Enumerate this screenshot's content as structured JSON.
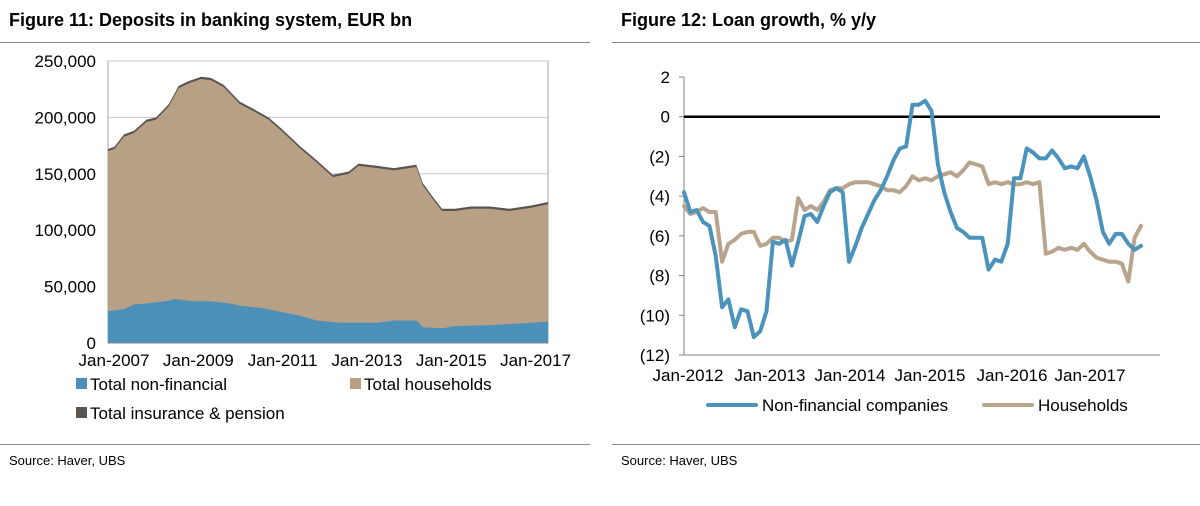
{
  "chart_data": [
    {
      "type": "area",
      "title": "Figure 11: Deposits in banking system, EUR bn",
      "source": "Source:  Haver, UBS",
      "stacked": true,
      "x_tick_labels": [
        "Jan-2007",
        "Jan-2009",
        "Jan-2011",
        "Jan-2013",
        "Jan-2015",
        "Jan-2017"
      ],
      "y_tick_labels": [
        "0",
        "50,000",
        "100,000",
        "150,000",
        "200,000",
        "250,000"
      ],
      "y_ticks": [
        0,
        50000,
        100000,
        150000,
        200000,
        250000
      ],
      "ylim": [
        0,
        250000
      ],
      "x_range": [
        "2007-01",
        "2018-06"
      ],
      "grid": true,
      "legend_position": "bottom",
      "series": [
        {
          "name": "Total non-financial",
          "color": "#4a90b8",
          "points": [
            [
              "2007-01",
              28000
            ],
            [
              "2007-06",
              30000
            ],
            [
              "2007-09",
              34000
            ],
            [
              "2008-01",
              35000
            ],
            [
              "2008-07",
              37000
            ],
            [
              "2008-10",
              39000
            ],
            [
              "2009-03",
              37000
            ],
            [
              "2009-09",
              37000
            ],
            [
              "2010-03",
              35000
            ],
            [
              "2010-06",
              33000
            ],
            [
              "2011-01",
              31000
            ],
            [
              "2011-06",
              28000
            ],
            [
              "2012-01",
              24000
            ],
            [
              "2012-06",
              20000
            ],
            [
              "2013-01",
              18000
            ],
            [
              "2014-01",
              18000
            ],
            [
              "2014-06",
              20000
            ],
            [
              "2015-01",
              20000
            ],
            [
              "2015-03",
              14000
            ],
            [
              "2015-09",
              13000
            ],
            [
              "2016-01",
              15000
            ],
            [
              "2017-01",
              16000
            ],
            [
              "2018-01",
              18000
            ],
            [
              "2018-06",
              19000
            ]
          ]
        },
        {
          "name": "Total households",
          "color": "#b7a085",
          "points": [
            [
              "2007-01",
              170000
            ],
            [
              "2007-03",
              172000
            ],
            [
              "2007-06",
              183000
            ],
            [
              "2007-09",
              186000
            ],
            [
              "2008-01",
              196000
            ],
            [
              "2008-04",
              198000
            ],
            [
              "2008-08",
              210000
            ],
            [
              "2008-11",
              226000
            ],
            [
              "2009-02",
              230000
            ],
            [
              "2009-06",
              234000
            ],
            [
              "2009-09",
              233000
            ],
            [
              "2010-01",
              227000
            ],
            [
              "2010-06",
              212000
            ],
            [
              "2010-10",
              206000
            ],
            [
              "2011-03",
              198000
            ],
            [
              "2011-07",
              188000
            ],
            [
              "2012-01",
              172000
            ],
            [
              "2012-06",
              160000
            ],
            [
              "2012-11",
              147000
            ],
            [
              "2013-04",
              150000
            ],
            [
              "2013-07",
              157000
            ],
            [
              "2014-01",
              155000
            ],
            [
              "2014-06",
              153000
            ],
            [
              "2015-01",
              156000
            ],
            [
              "2015-03",
              140000
            ],
            [
              "2015-06",
              128000
            ],
            [
              "2015-09",
              117000
            ],
            [
              "2016-01",
              117000
            ],
            [
              "2016-06",
              119000
            ],
            [
              "2016-12",
              119000
            ],
            [
              "2017-06",
              117000
            ],
            [
              "2018-01",
              120000
            ],
            [
              "2018-06",
              123000
            ]
          ]
        },
        {
          "name": "Total insurance & pension",
          "color": "#5a5550",
          "points": [
            [
              "2007-01",
              172000
            ],
            [
              "2007-03",
              174000
            ],
            [
              "2007-06",
              185000
            ],
            [
              "2007-09",
              188000
            ],
            [
              "2008-01",
              198000
            ],
            [
              "2008-04",
              200000
            ],
            [
              "2008-08",
              212000
            ],
            [
              "2008-11",
              228000
            ],
            [
              "2009-02",
              232000
            ],
            [
              "2009-06",
              236000
            ],
            [
              "2009-09",
              235000
            ],
            [
              "2010-01",
              229000
            ],
            [
              "2010-06",
              214000
            ],
            [
              "2010-10",
              208000
            ],
            [
              "2011-03",
              200000
            ],
            [
              "2011-07",
              190000
            ],
            [
              "2012-01",
              174000
            ],
            [
              "2012-06",
              162000
            ],
            [
              "2012-11",
              149000
            ],
            [
              "2013-04",
              152000
            ],
            [
              "2013-07",
              159000
            ],
            [
              "2014-01",
              157000
            ],
            [
              "2014-06",
              155000
            ],
            [
              "2015-01",
              158000
            ],
            [
              "2015-03",
              142000
            ],
            [
              "2015-06",
              130000
            ],
            [
              "2015-09",
              119000
            ],
            [
              "2016-01",
              119000
            ],
            [
              "2016-06",
              121000
            ],
            [
              "2016-12",
              121000
            ],
            [
              "2017-06",
              119000
            ],
            [
              "2018-01",
              122000
            ],
            [
              "2018-06",
              125000
            ]
          ]
        }
      ]
    },
    {
      "type": "line",
      "title": "Figure 12: Loan growth, % y/y",
      "source": "Source:  Haver, UBS",
      "x_tick_labels": [
        "Jan-2012",
        "Jan-2013",
        "Jan-2014",
        "Jan-2015",
        "Jan-2016",
        "Jan-2017"
      ],
      "y_tick_labels": [
        "2",
        "0",
        "(2)",
        "(4)",
        "(6)",
        "(8)",
        "(10)",
        "(12)"
      ],
      "y_ticks": [
        2,
        0,
        -2,
        -4,
        -6,
        -8,
        -10,
        -12
      ],
      "ylim": [
        -12,
        2
      ],
      "x_range": [
        "2012-01",
        "2018-04"
      ],
      "zero_line": true,
      "grid": false,
      "legend_position": "bottom",
      "series": [
        {
          "name": "Non-financial companies",
          "color": "#4b93bb",
          "points": [
            [
              "2012-01",
              -3.8
            ],
            [
              "2012-02",
              -4.8
            ],
            [
              "2012-03",
              -4.7
            ],
            [
              "2012-04",
              -5.3
            ],
            [
              "2012-05",
              -5.5
            ],
            [
              "2012-06",
              -7.0
            ],
            [
              "2012-07",
              -9.6
            ],
            [
              "2012-08",
              -9.2
            ],
            [
              "2012-09",
              -10.6
            ],
            [
              "2012-10",
              -9.7
            ],
            [
              "2012-11",
              -9.8
            ],
            [
              "2012-12",
              -11.1
            ],
            [
              "2013-01",
              -10.8
            ],
            [
              "2013-02",
              -9.8
            ],
            [
              "2013-03",
              -6.3
            ],
            [
              "2013-04",
              -6.4
            ],
            [
              "2013-05",
              -6.2
            ],
            [
              "2013-06",
              -7.5
            ],
            [
              "2013-07",
              -6.3
            ],
            [
              "2013-08",
              -5.0
            ],
            [
              "2013-09",
              -4.9
            ],
            [
              "2013-10",
              -5.3
            ],
            [
              "2013-11",
              -4.5
            ],
            [
              "2013-12",
              -3.8
            ],
            [
              "2014-01",
              -3.6
            ],
            [
              "2014-02",
              -3.8
            ],
            [
              "2014-03",
              -7.3
            ],
            [
              "2014-04",
              -6.5
            ],
            [
              "2014-05",
              -5.6
            ],
            [
              "2014-06",
              -4.9
            ],
            [
              "2014-07",
              -4.2
            ],
            [
              "2014-08",
              -3.7
            ],
            [
              "2014-09",
              -3.0
            ],
            [
              "2014-10",
              -2.2
            ],
            [
              "2014-11",
              -1.6
            ],
            [
              "2014-12",
              -1.5
            ],
            [
              "2015-01",
              0.6
            ],
            [
              "2015-02",
              0.6
            ],
            [
              "2015-03",
              0.8
            ],
            [
              "2015-04",
              0.3
            ],
            [
              "2015-05",
              -2.4
            ],
            [
              "2015-06",
              -3.8
            ],
            [
              "2015-07",
              -4.8
            ],
            [
              "2015-08",
              -5.6
            ],
            [
              "2015-09",
              -5.8
            ],
            [
              "2015-10",
              -6.1
            ],
            [
              "2015-11",
              -6.1
            ],
            [
              "2015-12",
              -6.1
            ],
            [
              "2016-01",
              -7.7
            ],
            [
              "2016-02",
              -7.2
            ],
            [
              "2016-03",
              -7.3
            ],
            [
              "2016-04",
              -6.4
            ],
            [
              "2016-05",
              -3.1
            ],
            [
              "2016-06",
              -3.1
            ],
            [
              "2016-07",
              -1.6
            ],
            [
              "2016-08",
              -1.8
            ],
            [
              "2016-09",
              -2.1
            ],
            [
              "2016-10",
              -2.1
            ],
            [
              "2016-11",
              -1.7
            ],
            [
              "2016-12",
              -2.1
            ],
            [
              "2017-01",
              -2.6
            ],
            [
              "2017-02",
              -2.5
            ],
            [
              "2017-03",
              -2.6
            ],
            [
              "2017-04",
              -2.0
            ],
            [
              "2017-05",
              -3.0
            ],
            [
              "2017-06",
              -4.2
            ],
            [
              "2017-07",
              -5.8
            ],
            [
              "2017-08",
              -6.4
            ],
            [
              "2017-09",
              -5.9
            ],
            [
              "2017-10",
              -5.9
            ],
            [
              "2017-11",
              -6.4
            ],
            [
              "2017-12",
              -6.7
            ],
            [
              "2018-01",
              -6.5
            ]
          ]
        },
        {
          "name": "Households",
          "color": "#b8a48c",
          "points": [
            [
              "2012-01",
              -4.5
            ],
            [
              "2012-02",
              -4.9
            ],
            [
              "2012-03",
              -4.8
            ],
            [
              "2012-04",
              -4.6
            ],
            [
              "2012-05",
              -4.8
            ],
            [
              "2012-06",
              -4.8
            ],
            [
              "2012-07",
              -7.3
            ],
            [
              "2012-08",
              -6.4
            ],
            [
              "2012-09",
              -6.2
            ],
            [
              "2012-10",
              -5.9
            ],
            [
              "2012-11",
              -5.8
            ],
            [
              "2012-12",
              -5.8
            ],
            [
              "2013-01",
              -6.5
            ],
            [
              "2013-02",
              -6.4
            ],
            [
              "2013-03",
              -6.1
            ],
            [
              "2013-04",
              -6.1
            ],
            [
              "2013-05",
              -6.3
            ],
            [
              "2013-06",
              -6.2
            ],
            [
              "2013-07",
              -4.1
            ],
            [
              "2013-08",
              -4.7
            ],
            [
              "2013-09",
              -4.5
            ],
            [
              "2013-10",
              -4.7
            ],
            [
              "2013-11",
              -4.3
            ],
            [
              "2013-12",
              -3.7
            ],
            [
              "2014-01",
              -3.6
            ],
            [
              "2014-02",
              -3.6
            ],
            [
              "2014-03",
              -3.4
            ],
            [
              "2014-04",
              -3.3
            ],
            [
              "2014-05",
              -3.3
            ],
            [
              "2014-06",
              -3.3
            ],
            [
              "2014-07",
              -3.4
            ],
            [
              "2014-08",
              -3.5
            ],
            [
              "2014-09",
              -3.7
            ],
            [
              "2014-10",
              -3.7
            ],
            [
              "2014-11",
              -3.8
            ],
            [
              "2014-12",
              -3.5
            ],
            [
              "2015-01",
              -3.0
            ],
            [
              "2015-02",
              -3.2
            ],
            [
              "2015-03",
              -3.1
            ],
            [
              "2015-04",
              -3.2
            ],
            [
              "2015-05",
              -3.0
            ],
            [
              "2015-06",
              -2.9
            ],
            [
              "2015-07",
              -2.8
            ],
            [
              "2015-08",
              -3.0
            ],
            [
              "2015-09",
              -2.7
            ],
            [
              "2015-10",
              -2.3
            ],
            [
              "2015-11",
              -2.4
            ],
            [
              "2015-12",
              -2.5
            ],
            [
              "2016-01",
              -3.4
            ],
            [
              "2016-02",
              -3.3
            ],
            [
              "2016-03",
              -3.4
            ],
            [
              "2016-04",
              -3.3
            ],
            [
              "2016-05",
              -3.4
            ],
            [
              "2016-06",
              -3.4
            ],
            [
              "2016-07",
              -3.3
            ],
            [
              "2016-08",
              -3.4
            ],
            [
              "2016-09",
              -3.3
            ],
            [
              "2016-10",
              -6.9
            ],
            [
              "2016-11",
              -6.8
            ],
            [
              "2016-12",
              -6.6
            ],
            [
              "2017-01",
              -6.7
            ],
            [
              "2017-02",
              -6.6
            ],
            [
              "2017-03",
              -6.7
            ],
            [
              "2017-04",
              -6.4
            ],
            [
              "2017-05",
              -6.8
            ],
            [
              "2017-06",
              -7.1
            ],
            [
              "2017-07",
              -7.2
            ],
            [
              "2017-08",
              -7.3
            ],
            [
              "2017-09",
              -7.3
            ],
            [
              "2017-10",
              -7.4
            ],
            [
              "2017-11",
              -8.3
            ],
            [
              "2017-12",
              -6.1
            ],
            [
              "2018-01",
              -5.5
            ]
          ]
        }
      ]
    }
  ]
}
